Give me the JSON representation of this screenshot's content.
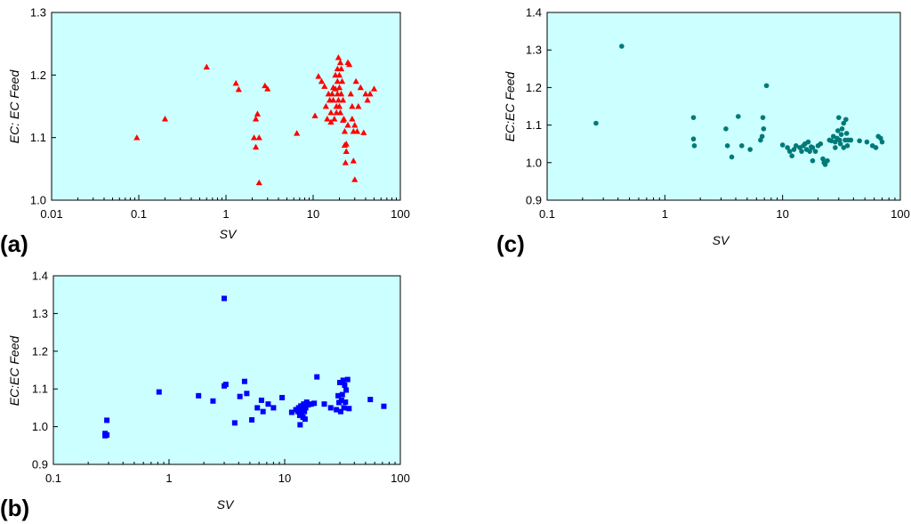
{
  "chart_data": [
    {
      "type": "scatter",
      "panel_label": "(a)",
      "xscale": "log",
      "xlim": [
        0.01,
        100
      ],
      "ylim": [
        1.0,
        1.3
      ],
      "xlabel": "SV",
      "ylabel": "EC: EC Feed",
      "xticks": [
        "0.01",
        "0.1",
        "1",
        "10",
        "100"
      ],
      "yticks": [
        "1.0",
        "1.1",
        "1.2",
        "1.3"
      ],
      "marker": "triangle",
      "color": "#ff0000",
      "background": "#ccffff",
      "grid": false,
      "series": [
        {
          "name": "",
          "points": [
            [
              0.095,
              1.1
            ],
            [
              0.2,
              1.13
            ],
            [
              0.6,
              1.213
            ],
            [
              1.3,
              1.187
            ],
            [
              1.4,
              1.177
            ],
            [
              2.1,
              1.1
            ],
            [
              2.2,
              1.13
            ],
            [
              2.3,
              1.138
            ],
            [
              2.4,
              1.1
            ],
            [
              2.2,
              1.085
            ],
            [
              2.4,
              1.028
            ],
            [
              2.8,
              1.183
            ],
            [
              3.0,
              1.178
            ],
            [
              6.5,
              1.107
            ],
            [
              10.5,
              1.135
            ],
            [
              11.5,
              1.198
            ],
            [
              12.5,
              1.19
            ],
            [
              13.5,
              1.182
            ],
            [
              14,
              1.15
            ],
            [
              14.5,
              1.13
            ],
            [
              15,
              1.17
            ],
            [
              15.5,
              1.16
            ],
            [
              16,
              1.14
            ],
            [
              16,
              1.125
            ],
            [
              16.5,
              1.17
            ],
            [
              17,
              1.18
            ],
            [
              17,
              1.16
            ],
            [
              17.5,
              1.13
            ],
            [
              18,
              1.2
            ],
            [
              18,
              1.178
            ],
            [
              18.5,
              1.15
            ],
            [
              18.5,
              1.14
            ],
            [
              19,
              1.21
            ],
            [
              19,
              1.19
            ],
            [
              19,
              1.17
            ],
            [
              19.5,
              1.228
            ],
            [
              19.5,
              1.16
            ],
            [
              20,
              1.2
            ],
            [
              20,
              1.18
            ],
            [
              20,
              1.15
            ],
            [
              20.5,
              1.22
            ],
            [
              20.5,
              1.14
            ],
            [
              21,
              1.21
            ],
            [
              21,
              1.17
            ],
            [
              21.5,
              1.19
            ],
            [
              22,
              1.16
            ],
            [
              22,
              1.128
            ],
            [
              22.5,
              1.13
            ],
            [
              23,
              1.11
            ],
            [
              23,
              1.088
            ],
            [
              23.5,
              1.06
            ],
            [
              24,
              1.09
            ],
            [
              24,
              1.078
            ],
            [
              25,
              1.12
            ],
            [
              25,
              1.22
            ],
            [
              26,
              1.217
            ],
            [
              27,
              1.17
            ],
            [
              28,
              1.13
            ],
            [
              28,
              1.15
            ],
            [
              29,
              1.063
            ],
            [
              29,
              1.11
            ],
            [
              30,
              1.12
            ],
            [
              30,
              1.033
            ],
            [
              31,
              1.19
            ],
            [
              32,
              1.11
            ],
            [
              33,
              1.15
            ],
            [
              35,
              1.18
            ],
            [
              38,
              1.108
            ],
            [
              40,
              1.17
            ],
            [
              42,
              1.16
            ],
            [
              45,
              1.17
            ],
            [
              50,
              1.178
            ]
          ]
        }
      ]
    },
    {
      "type": "scatter",
      "panel_label": "(b)",
      "xscale": "log",
      "xlim": [
        0.1,
        100
      ],
      "ylim": [
        0.9,
        1.4
      ],
      "xlabel": "SV",
      "ylabel": "EC:EC Feed",
      "xticks": [
        "0.1",
        "1",
        "10",
        "100"
      ],
      "yticks": [
        "0.9",
        "1.0",
        "1.1",
        "1.2",
        "1.3",
        "1.4"
      ],
      "marker": "square",
      "color": "#0000ff",
      "background": "#ccffff",
      "grid": false,
      "series": [
        {
          "name": "",
          "points": [
            [
              0.28,
              0.982
            ],
            [
              0.28,
              0.976
            ],
            [
              0.29,
              0.978
            ],
            [
              0.29,
              1.017
            ],
            [
              0.82,
              1.092
            ],
            [
              1.8,
              1.082
            ],
            [
              2.4,
              1.068
            ],
            [
              3.0,
              1.34
            ],
            [
              3.0,
              1.108
            ],
            [
              3.1,
              1.112
            ],
            [
              3.7,
              1.01
            ],
            [
              4.1,
              1.08
            ],
            [
              4.5,
              1.12
            ],
            [
              4.7,
              1.088
            ],
            [
              5.2,
              1.018
            ],
            [
              5.8,
              1.05
            ],
            [
              6.3,
              1.07
            ],
            [
              6.5,
              1.04
            ],
            [
              7.2,
              1.06
            ],
            [
              8,
              1.05
            ],
            [
              9.5,
              1.077
            ],
            [
              11.5,
              1.038
            ],
            [
              12.5,
              1.045
            ],
            [
              13,
              1.04
            ],
            [
              13.2,
              1.05
            ],
            [
              13.5,
              1.03
            ],
            [
              13.6,
              1.005
            ],
            [
              13.8,
              1.055
            ],
            [
              14,
              1.035
            ],
            [
              14.2,
              1.045
            ],
            [
              14.4,
              1.025
            ],
            [
              14.6,
              1.06
            ],
            [
              14.8,
              1.04
            ],
            [
              15,
              1.02
            ],
            [
              15.2,
              1.05
            ],
            [
              15.5,
              1.065
            ],
            [
              16,
              1.058
            ],
            [
              17,
              1.06
            ],
            [
              18,
              1.062
            ],
            [
              19,
              1.132
            ],
            [
              22,
              1.06
            ],
            [
              25,
              1.05
            ],
            [
              28,
              1.045
            ],
            [
              29,
              1.082
            ],
            [
              29.5,
              1.064
            ],
            [
              30,
              1.117
            ],
            [
              30.5,
              1.04
            ],
            [
              31,
              1.07
            ],
            [
              31.5,
              1.085
            ],
            [
              32,
              1.123
            ],
            [
              32.5,
              1.05
            ],
            [
              33,
              1.11
            ],
            [
              33.5,
              1.065
            ],
            [
              34,
              1.097
            ],
            [
              35,
              1.125
            ],
            [
              36,
              1.048
            ],
            [
              55,
              1.072
            ],
            [
              72,
              1.054
            ]
          ]
        }
      ]
    },
    {
      "type": "scatter",
      "panel_label": "(c)",
      "xscale": "log",
      "xlim": [
        0.1,
        100
      ],
      "ylim": [
        0.9,
        1.4
      ],
      "xlabel": "SV",
      "ylabel": "EC:EC Feed",
      "xticks": [
        "0.1",
        "1",
        "10",
        "100"
      ],
      "yticks": [
        "0.9",
        "1.0",
        "1.1",
        "1.2",
        "1.3",
        "1.4"
      ],
      "marker": "circle",
      "color": "#007a78",
      "background": "#ccffff",
      "grid": false,
      "series": [
        {
          "name": "",
          "points": [
            [
              0.26,
              1.105
            ],
            [
              0.43,
              1.31
            ],
            [
              1.75,
              1.12
            ],
            [
              1.75,
              1.063
            ],
            [
              1.78,
              1.045
            ],
            [
              3.3,
              1.09
            ],
            [
              3.4,
              1.045
            ],
            [
              3.7,
              1.015
            ],
            [
              4.2,
              1.123
            ],
            [
              4.5,
              1.045
            ],
            [
              5.3,
              1.035
            ],
            [
              6.5,
              1.06
            ],
            [
              6.7,
              1.07
            ],
            [
              6.8,
              1.12
            ],
            [
              6.9,
              1.09
            ],
            [
              7.3,
              1.205
            ],
            [
              10,
              1.047
            ],
            [
              11,
              1.04
            ],
            [
              11.5,
              1.03
            ],
            [
              12,
              1.018
            ],
            [
              12.5,
              1.035
            ],
            [
              13,
              1.045
            ],
            [
              14,
              1.04
            ],
            [
              14.5,
              1.03
            ],
            [
              15,
              1.045
            ],
            [
              15.5,
              1.05
            ],
            [
              16,
              1.035
            ],
            [
              16.5,
              1.055
            ],
            [
              17,
              1.03
            ],
            [
              17.5,
              1.042
            ],
            [
              18,
              1.04
            ],
            [
              18,
              1.005
            ],
            [
              19,
              1.03
            ],
            [
              20,
              1.045
            ],
            [
              21,
              1.05
            ],
            [
              22,
              1.01
            ],
            [
              22.5,
              1.0
            ],
            [
              23,
              0.995
            ],
            [
              24,
              1.005
            ],
            [
              25,
              1.06
            ],
            [
              26,
              1.058
            ],
            [
              27,
              1.07
            ],
            [
              28,
              1.055
            ],
            [
              28,
              1.04
            ],
            [
              29,
              1.065
            ],
            [
              29.5,
              1.085
            ],
            [
              30,
              1.12
            ],
            [
              30.5,
              1.06
            ],
            [
              31,
              1.05
            ],
            [
              31.5,
              1.075
            ],
            [
              32,
              1.09
            ],
            [
              33,
              1.105
            ],
            [
              33,
              1.04
            ],
            [
              34,
              1.06
            ],
            [
              34.5,
              1.115
            ],
            [
              35,
              1.078
            ],
            [
              35.5,
              1.045
            ],
            [
              36,
              1.06
            ],
            [
              38,
              1.06
            ],
            [
              45,
              1.058
            ],
            [
              52,
              1.055
            ],
            [
              58,
              1.045
            ],
            [
              62,
              1.04
            ],
            [
              65,
              1.07
            ],
            [
              68,
              1.065
            ],
            [
              70,
              1.055
            ]
          ]
        }
      ]
    }
  ]
}
